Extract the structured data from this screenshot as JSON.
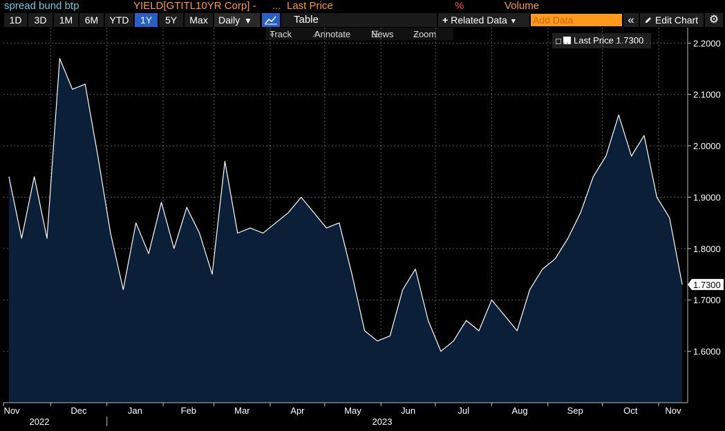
{
  "header": {
    "title": "spread bund btp",
    "security": "YIELD[GTITL10YR Corp] -",
    "ellipsis": "...",
    "field": "Last Price",
    "unit": "%",
    "volume": "Volume"
  },
  "toolbar": {
    "ranges": [
      "1D",
      "3D",
      "1M",
      "6M",
      "YTD",
      "1Y",
      "5Y",
      "Max"
    ],
    "active_range": "1Y",
    "frequency": "Daily",
    "frequency_arrow": "▼",
    "table_label": "Table",
    "related_data": "Related Data",
    "related_arrow": "▾",
    "add_data_placeholder": "Add Data",
    "collapse_glyph": "«",
    "edit_chart": "Edit Chart",
    "settings_glyph": "⚙"
  },
  "subtoolbar": {
    "track": "Track",
    "annotate": "Annotate",
    "news": "News",
    "zoom": "Zoom"
  },
  "legend": {
    "label": "Last Price",
    "value": "1.7300"
  },
  "colors": {
    "background": "#000000",
    "area_fill": "#0b1f38",
    "line": "#ffffff",
    "active_button": "#2860c8",
    "orange": "#ff9a2e",
    "cyan": "#5fd0e6"
  },
  "chart_data": {
    "type": "area",
    "series": [
      {
        "name": "Last Price",
        "x": [
          "2022-11-08",
          "2022-11-15",
          "2022-11-22",
          "2022-11-29",
          "2022-12-06",
          "2022-12-13",
          "2022-12-20",
          "2022-12-27",
          "2023-01-03",
          "2023-01-10",
          "2023-01-17",
          "2023-01-24",
          "2023-01-31",
          "2023-02-07",
          "2023-02-14",
          "2023-02-21",
          "2023-02-28",
          "2023-03-07",
          "2023-03-14",
          "2023-03-21",
          "2023-03-28",
          "2023-04-04",
          "2023-04-11",
          "2023-04-18",
          "2023-04-25",
          "2023-05-02",
          "2023-05-09",
          "2023-05-16",
          "2023-05-23",
          "2023-05-30",
          "2023-06-06",
          "2023-06-13",
          "2023-06-20",
          "2023-06-27",
          "2023-07-04",
          "2023-07-11",
          "2023-07-18",
          "2023-07-25",
          "2023-08-01",
          "2023-08-08",
          "2023-08-15",
          "2023-08-22",
          "2023-08-29",
          "2023-09-05",
          "2023-09-12",
          "2023-09-19",
          "2023-09-26",
          "2023-10-03",
          "2023-10-10",
          "2023-10-17",
          "2023-10-24",
          "2023-10-31",
          "2023-11-07",
          "2023-11-14"
        ],
        "values": [
          1.94,
          1.82,
          1.94,
          1.82,
          2.17,
          2.11,
          2.12,
          1.98,
          1.83,
          1.72,
          1.85,
          1.79,
          1.89,
          1.8,
          1.88,
          1.83,
          1.75,
          1.97,
          1.83,
          1.84,
          1.83,
          1.85,
          1.87,
          1.9,
          1.87,
          1.84,
          1.85,
          1.75,
          1.64,
          1.62,
          1.63,
          1.72,
          1.76,
          1.66,
          1.6,
          1.62,
          1.66,
          1.64,
          1.7,
          1.67,
          1.64,
          1.72,
          1.76,
          1.78,
          1.82,
          1.87,
          1.94,
          1.98,
          2.06,
          1.98,
          2.02,
          1.9,
          1.86,
          1.73
        ]
      }
    ],
    "x_ticks": [
      "Nov",
      "Dec",
      "Jan",
      "Feb",
      "Mar",
      "Apr",
      "May",
      "Jun",
      "Jul",
      "Aug",
      "Sep",
      "Oct",
      "Nov"
    ],
    "x_years": [
      "2022",
      "2023"
    ],
    "y_ticks": [
      "2.2000",
      "2.1000",
      "2.0000",
      "1.9000",
      "1.8000",
      "1.7000",
      "1.6000"
    ],
    "ylim": [
      1.5,
      2.23
    ],
    "last_value_label": "1.7300",
    "grid": true,
    "legend_position": "top-right"
  }
}
